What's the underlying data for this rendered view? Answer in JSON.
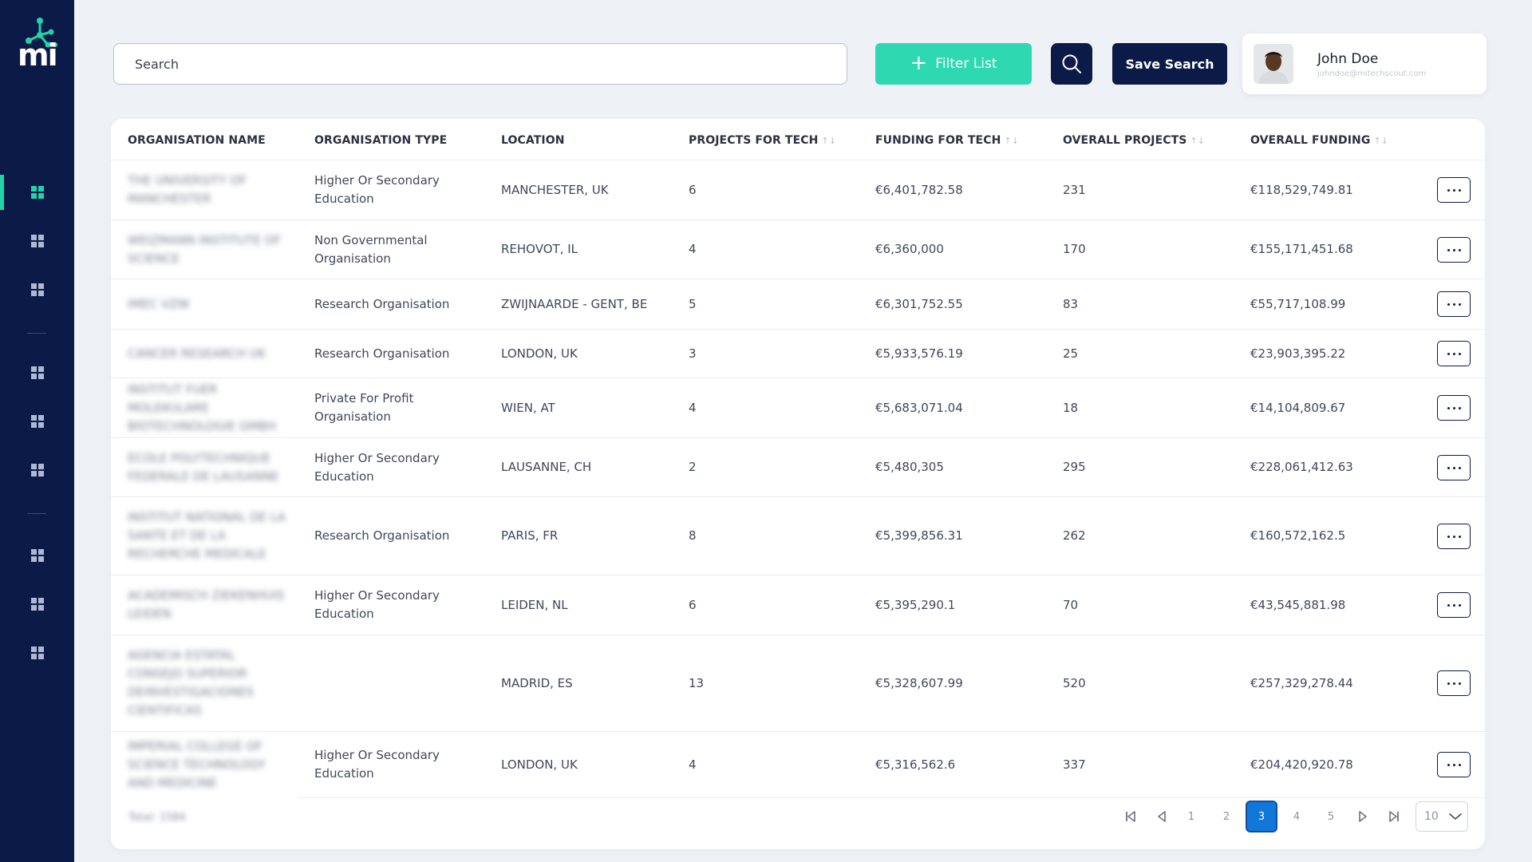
{
  "app": {
    "logo_text": "mi"
  },
  "search": {
    "placeholder": "Search"
  },
  "toolbar": {
    "filter_label": "Filter List",
    "save_label": "Save Search"
  },
  "user": {
    "name": "John Doe",
    "email": "johndoe@mitechscout.com"
  },
  "columns": [
    "ORGANISATION NAME",
    "ORGANISATION TYPE",
    "LOCATION",
    "PROJECTS FOR TECH",
    "FUNDING FOR TECH",
    "OVERALL PROJECTS",
    "OVERALL FUNDING"
  ],
  "rows": [
    {
      "name": "THE UNIVERSITY OF MANCHESTER",
      "type": "Higher Or Secondary Education",
      "location": "MANCHESTER, UK",
      "projects_tech": "6",
      "funding_tech": "€6,401,782.58",
      "overall_projects": "231",
      "overall_funding": "€118,529,749.81"
    },
    {
      "name": "WEIZMANN INSTITUTE OF SCIENCE",
      "type": "Non Governmental Organisation",
      "location": "REHOVOT, IL",
      "projects_tech": "4",
      "funding_tech": "€6,360,000",
      "overall_projects": "170",
      "overall_funding": "€155,171,451.68"
    },
    {
      "name": "IMEC VZW",
      "type": "Research Organisation",
      "location": "ZWIJNAARDE - GENT, BE",
      "projects_tech": "5",
      "funding_tech": "€6,301,752.55",
      "overall_projects": "83",
      "overall_funding": "€55,717,108.99"
    },
    {
      "name": "CANCER RESEARCH UK",
      "type": "Research Organisation",
      "location": "LONDON, UK",
      "projects_tech": "3",
      "funding_tech": "€5,933,576.19",
      "overall_projects": "25",
      "overall_funding": "€23,903,395.22"
    },
    {
      "name": "INSTITUT FUER MOLEKULARE BIOTECHNOLOGIE GMBH",
      "type": "Private For Profit Organisation",
      "location": "WIEN, AT",
      "projects_tech": "4",
      "funding_tech": "€5,683,071.04",
      "overall_projects": "18",
      "overall_funding": "€14,104,809.67"
    },
    {
      "name": "ECOLE POLYTECHNIQUE FEDERALE DE LAUSANNE",
      "type": "Higher Or Secondary Education",
      "location": "LAUSANNE, CH",
      "projects_tech": "2",
      "funding_tech": "€5,480,305",
      "overall_projects": "295",
      "overall_funding": "€228,061,412.63"
    },
    {
      "name": "INSTITUT NATIONAL DE LA SANTE ET DE LA RECHERCHE MEDICALE",
      "type": "Research Organisation",
      "location": "PARIS, FR",
      "projects_tech": "8",
      "funding_tech": "€5,399,856.31",
      "overall_projects": "262",
      "overall_funding": "€160,572,162.5"
    },
    {
      "name": "ACADEMISCH ZIEKENHUIS LEIDEN",
      "type": "Higher Or Secondary Education",
      "location": "LEIDEN, NL",
      "projects_tech": "6",
      "funding_tech": "€5,395,290.1",
      "overall_projects": "70",
      "overall_funding": "€43,545,881.98"
    },
    {
      "name": "AGENCIA ESTATAL CONSEJO SUPERIOR DEINVESTIGACIONES CIENTIFICAS",
      "type": "",
      "location": "MADRID, ES",
      "projects_tech": "13",
      "funding_tech": "€5,328,607.99",
      "overall_projects": "520",
      "overall_funding": "€257,329,278.44"
    },
    {
      "name": "IMPERIAL COLLEGE OF SCIENCE TECHNOLOGY AND MEDICINE",
      "type": "Higher Or Secondary Education",
      "location": "LONDON, UK",
      "projects_tech": "4",
      "funding_tech": "€5,316,562.6",
      "overall_projects": "337",
      "overall_funding": "€204,420,920.78"
    }
  ],
  "footer": {
    "total_text": "Total: 1584"
  },
  "pagination": {
    "pages": [
      "1",
      "2",
      "3",
      "4",
      "5"
    ],
    "current": "3",
    "per_page": "10"
  },
  "colors": {
    "sidebar": "#0c1a47",
    "accent": "#22d3a8",
    "filter_button": "#2ed8b1",
    "active_page": "#1177d8"
  },
  "icons": {
    "logo": "molecule-logo-icon",
    "nav": "grid-icon",
    "search": "search-icon",
    "filter": "plus-icon",
    "row_action": "more-horizontal-icon",
    "pagination": [
      "first-page-icon",
      "prev-page-icon",
      "next-page-icon",
      "last-page-icon"
    ],
    "per_page": "chevron-down-icon"
  }
}
